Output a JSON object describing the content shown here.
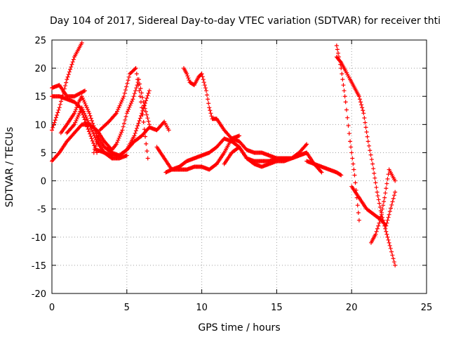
{
  "chart_data": {
    "type": "scatter",
    "title": "Day 104 of 2017, Sidereal Day-to-day VTEC variation (SDTVAR) for receiver thti",
    "xlabel": "GPS time / hours",
    "ylabel": "SDTVAR / TECUs",
    "xlim": [
      0,
      25
    ],
    "ylim": [
      -20,
      25
    ],
    "xticks": [
      0,
      5,
      10,
      15,
      20,
      25
    ],
    "yticks": [
      -20,
      -15,
      -10,
      -5,
      0,
      5,
      10,
      15,
      20,
      25
    ],
    "grid": true,
    "marker": "plus",
    "color": "#ff0000",
    "series": [
      {
        "x": [
          0.0,
          0.5,
          1.0,
          1.5,
          2.0
        ],
        "y": [
          9,
          13,
          18,
          22,
          24.5
        ]
      },
      {
        "x": [
          0.0,
          0.5,
          1.0,
          1.5,
          2.2
        ],
        "y": [
          16.5,
          17,
          15,
          15,
          16
        ]
      },
      {
        "x": [
          0.0,
          0.5,
          1.0,
          1.5,
          1.9,
          2.3,
          3.0
        ],
        "y": [
          15,
          15,
          14.5,
          14,
          13,
          10,
          5
        ]
      },
      {
        "x": [
          0.0,
          0.5,
          1.0,
          1.5,
          2.0,
          2.5,
          3.0,
          3.5,
          4.0,
          4.3,
          4.7,
          5.0,
          5.4,
          5.8,
          6.1,
          6.5
        ],
        "y": [
          3.5,
          5,
          7,
          8.5,
          10,
          10,
          9,
          7,
          5.5,
          6.5,
          9,
          12,
          14.5,
          18,
          14,
          10
        ]
      },
      {
        "x": [
          0.6,
          1.0,
          1.5,
          1.8,
          2.0,
          2.5,
          3.0,
          3.5,
          4.0,
          4.5,
          5.0,
          5.5,
          6.0,
          6.5
        ],
        "y": [
          8.5,
          10,
          12,
          14,
          15,
          12,
          8,
          6,
          5,
          4.5,
          5.5,
          8,
          12,
          16
        ]
      },
      {
        "x": [
          1.0,
          1.5,
          2.0,
          2.5,
          3.0,
          3.5,
          4.0,
          4.5,
          5.0
        ],
        "y": [
          8.5,
          10,
          13,
          10,
          7,
          5,
          4,
          4,
          4.5
        ]
      },
      {
        "x": [
          2.8,
          3.2,
          3.8,
          4.3,
          4.8,
          5.2,
          5.6,
          6.0,
          6.4
        ],
        "y": [
          5,
          9,
          10.5,
          12,
          15,
          19,
          20,
          13,
          4
        ]
      },
      {
        "x": [
          3.0,
          3.5,
          4.0,
          4.5,
          5.0,
          5.5,
          6.0,
          6.5,
          7.0,
          7.5,
          7.8
        ],
        "y": [
          5.5,
          5,
          4.5,
          4.5,
          5.5,
          7,
          8,
          9.5,
          9,
          10.5,
          9
        ]
      },
      {
        "x": [
          7.0,
          7.5,
          8.0,
          8.5,
          9.0,
          9.5,
          10.0,
          10.5,
          11.0,
          11.5,
          12.0,
          12.5
        ],
        "y": [
          6,
          4,
          2,
          2,
          2,
          2.5,
          2.5,
          2,
          3,
          5,
          7.5,
          8
        ]
      },
      {
        "x": [
          7.6,
          8.0,
          8.5,
          9.0,
          9.5,
          10.0,
          10.5,
          11.0,
          11.5,
          12.0,
          12.5,
          13.0,
          13.5,
          14.0,
          14.5,
          15.0,
          15.5,
          16.0,
          16.5,
          17.0
        ],
        "y": [
          1.5,
          2,
          2.5,
          3.5,
          4,
          4.5,
          5,
          6,
          7.5,
          7,
          6,
          4,
          3.5,
          3.5,
          3.5,
          4,
          4,
          4,
          5,
          6.5
        ]
      },
      {
        "x": [
          8.8,
          9.0,
          9.2,
          9.5,
          9.8,
          10.0,
          10.3,
          10.5,
          10.7,
          11.0,
          11.5,
          12.0,
          12.5,
          13.0,
          13.5,
          14.0,
          14.5,
          15.0,
          15.5,
          16.0,
          16.5,
          17.0
        ],
        "y": [
          20,
          19,
          17.5,
          17,
          18.5,
          19,
          16,
          13,
          11,
          11,
          9,
          7.5,
          7,
          5.5,
          5,
          5,
          4.5,
          4,
          4,
          4,
          4.5,
          5
        ]
      },
      {
        "x": [
          11.5,
          12.0,
          12.5,
          13.0,
          13.5,
          14.0,
          14.5,
          15.0,
          15.5,
          16.0,
          16.5,
          17.0,
          17.5,
          18.0
        ],
        "y": [
          3,
          5,
          6,
          4,
          3,
          2.5,
          3,
          3.5,
          3.5,
          4,
          4.5,
          5,
          3,
          1.5
        ]
      },
      {
        "x": [
          17.0,
          17.5,
          18.0,
          18.5,
          19.0,
          19.3
        ],
        "y": [
          3.5,
          3,
          2.5,
          2,
          1.5,
          1
        ]
      },
      {
        "x": [
          19.0,
          19.3,
          19.6,
          19.9,
          20.2,
          20.5
        ],
        "y": [
          24,
          20,
          14,
          7,
          1,
          -7
        ]
      },
      {
        "x": [
          19.0,
          19.3,
          19.6,
          19.9,
          20.2,
          20.5,
          20.8,
          21.1,
          21.4,
          21.7,
          22.0,
          22.3,
          22.6,
          22.9
        ],
        "y": [
          22,
          21,
          19.5,
          18,
          16.5,
          15,
          12,
          7,
          3,
          -2,
          -6,
          -9,
          -12,
          -15
        ]
      },
      {
        "x": [
          20.0,
          20.5,
          21.0,
          21.5,
          22.0,
          22.3,
          22.5,
          22.9
        ],
        "y": [
          -1,
          -3,
          -5,
          -6,
          -7,
          -8,
          -6,
          -2
        ]
      },
      {
        "x": [
          21.3,
          21.6,
          21.9,
          22.2,
          22.5,
          22.9
        ],
        "y": [
          -11,
          -9.5,
          -7,
          -3,
          2,
          0
        ]
      }
    ]
  }
}
